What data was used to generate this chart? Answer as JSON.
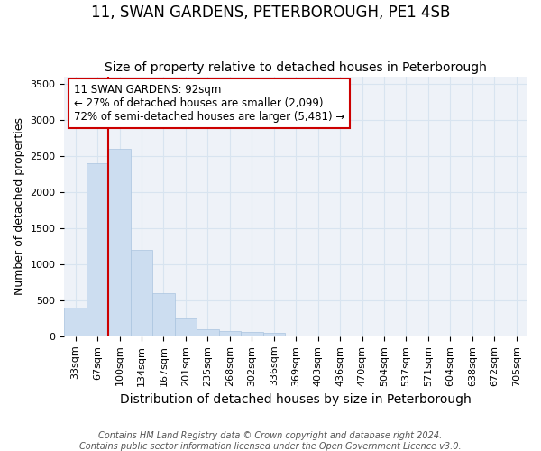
{
  "title": "11, SWAN GARDENS, PETERBOROUGH, PE1 4SB",
  "subtitle": "Size of property relative to detached houses in Peterborough",
  "xlabel": "Distribution of detached houses by size in Peterborough",
  "ylabel": "Number of detached properties",
  "footer_line1": "Contains HM Land Registry data © Crown copyright and database right 2024.",
  "footer_line2": "Contains public sector information licensed under the Open Government Licence v3.0.",
  "categories": [
    "33sqm",
    "67sqm",
    "100sqm",
    "134sqm",
    "167sqm",
    "201sqm",
    "235sqm",
    "268sqm",
    "302sqm",
    "336sqm",
    "369sqm",
    "403sqm",
    "436sqm",
    "470sqm",
    "504sqm",
    "537sqm",
    "571sqm",
    "604sqm",
    "638sqm",
    "672sqm",
    "705sqm"
  ],
  "values": [
    400,
    2400,
    2600,
    1200,
    600,
    250,
    100,
    70,
    60,
    50,
    0,
    0,
    0,
    0,
    0,
    0,
    0,
    0,
    0,
    0,
    0
  ],
  "bar_color": "#ccddf0",
  "bar_edge_color": "#aac4df",
  "vline_x_index": 1.5,
  "vline_color": "#cc0000",
  "annotation_line1": "11 SWAN GARDENS: 92sqm",
  "annotation_line2": "← 27% of detached houses are smaller (2,099)",
  "annotation_line3": "72% of semi-detached houses are larger (5,481) →",
  "annotation_box_color": "white",
  "annotation_box_edgecolor": "#cc0000",
  "ylim": [
    0,
    3600
  ],
  "yticks": [
    0,
    500,
    1000,
    1500,
    2000,
    2500,
    3000,
    3500
  ],
  "grid_color": "#d8e4f0",
  "bg_color": "#eef2f8",
  "title_fontsize": 12,
  "subtitle_fontsize": 10,
  "annot_fontsize": 8.5,
  "tick_fontsize": 8,
  "ylabel_fontsize": 9,
  "xlabel_fontsize": 10
}
